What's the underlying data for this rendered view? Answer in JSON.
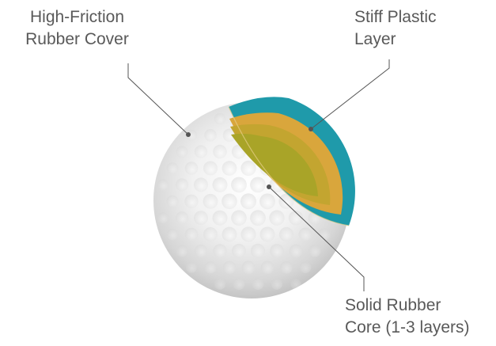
{
  "colors": {
    "ball_light": "#fbfbfb",
    "ball_shadow": "#bdbdbd",
    "plastic_layer": "#1f9aaa",
    "core_outer": "#d9a93a",
    "core_inner": "#a8a82a",
    "leader_line": "#555555",
    "label_text": "#595959"
  },
  "labels": {
    "cover": {
      "line1": "High-Friction",
      "line2": "Rubber Cover"
    },
    "plastic": {
      "line1": "Stiff Plastic",
      "line2": "Layer"
    },
    "core": {
      "line1": "Solid Rubber",
      "line2": "Core (1-3 layers)"
    }
  }
}
